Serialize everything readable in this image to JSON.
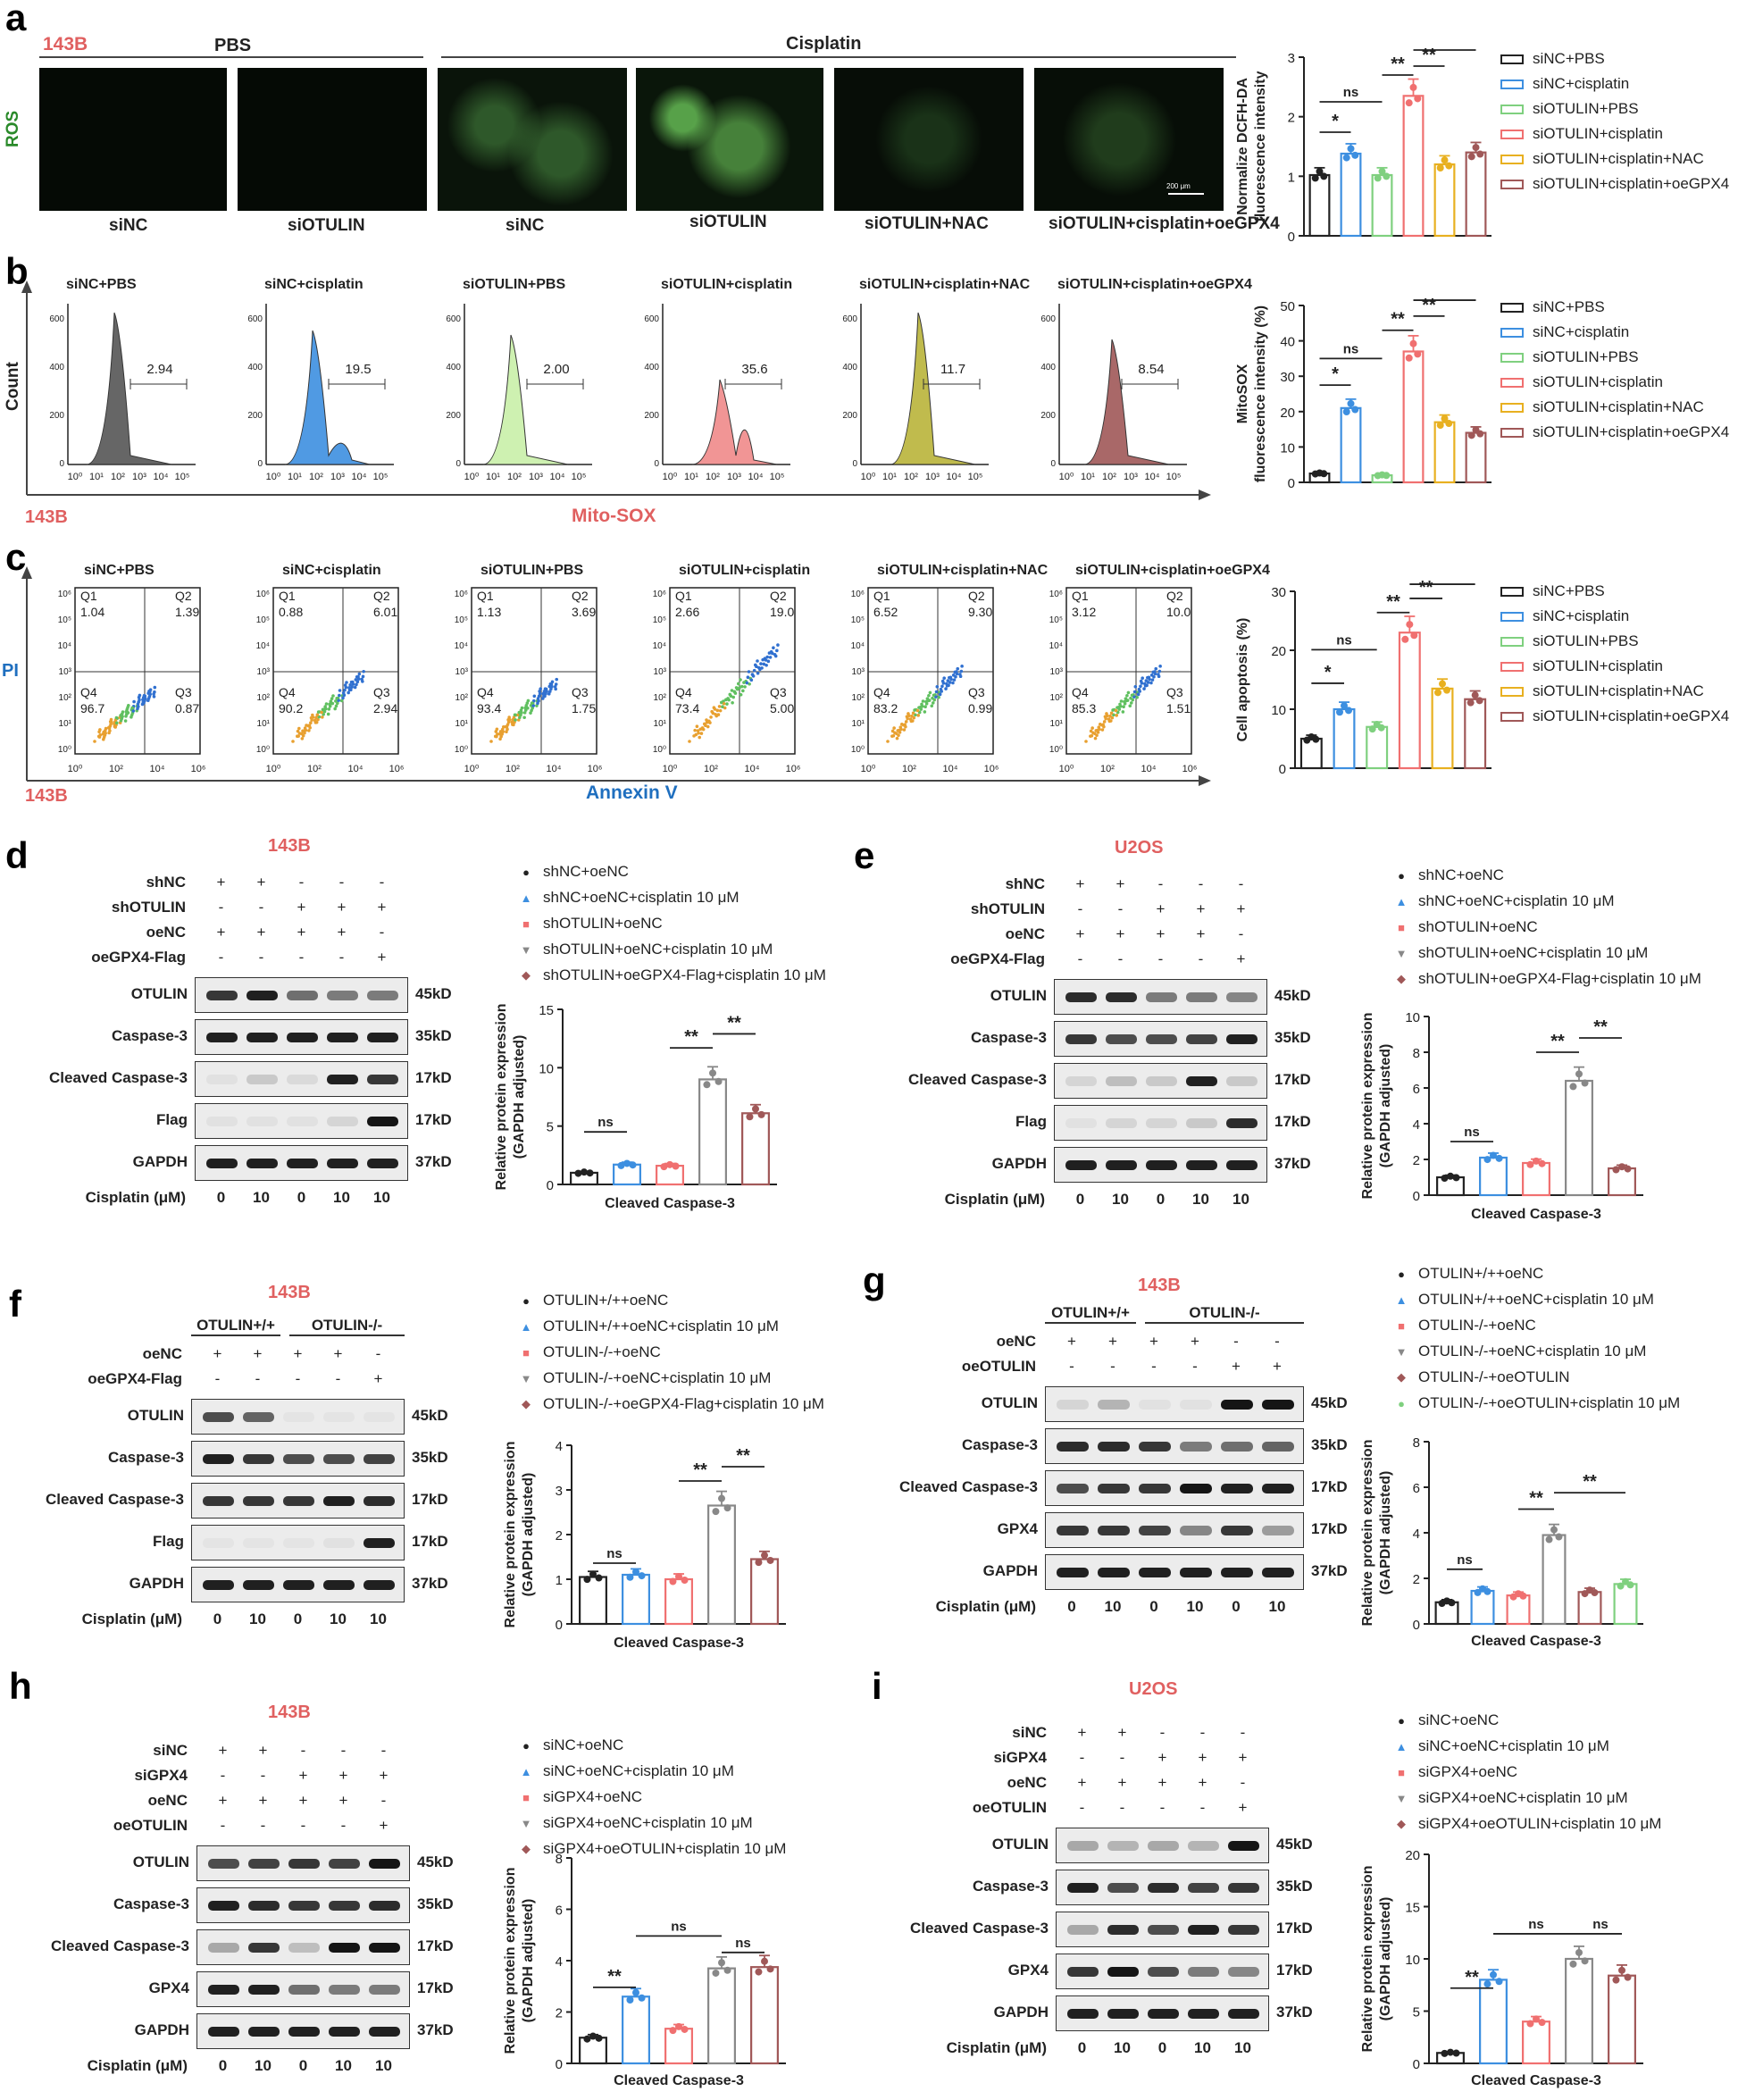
{
  "panels": {
    "a": {
      "label": "a",
      "cell": "143B",
      "pbs": "PBS",
      "cisplatin": "Cisplatin",
      "ros": "ROS",
      "scale": "200 μm",
      "images": [
        "siNC",
        "siOTULIN",
        "siNC",
        "siOTULIN",
        "siOTULIN+NAC",
        "siOTULIN+cisplatin+oeGPX4"
      ]
    },
    "b": {
      "label": "b",
      "ylabel": "Count",
      "xlabel": "Mito-SOX",
      "cell": "143B",
      "plots": [
        {
          "title": "siNC+PBS",
          "value": "2.94",
          "color": "#555555"
        },
        {
          "title": "siNC+cisplatin",
          "value": "19.5",
          "color": "#3d8fe0"
        },
        {
          "title": "siOTULIN+PBS",
          "value": "2.00",
          "color": "#c9f0a8"
        },
        {
          "title": "siOTULIN+cisplatin",
          "value": "35.6",
          "color": "#f08a8a"
        },
        {
          "title": "siOTULIN+cisplatin+NAC",
          "value": "11.7",
          "color": "#b9b43a"
        },
        {
          "title": "siOTULIN+cisplatin+oeGPX4",
          "value": "8.54",
          "color": "#a05858"
        }
      ]
    },
    "c": {
      "label": "c",
      "ylabel": "PI",
      "xlabel": "Annexin V",
      "cell": "143B",
      "plots": [
        {
          "title": "siNC+PBS",
          "q1": "1.04",
          "q2": "1.39",
          "q3": "0.87",
          "q4": "96.7"
        },
        {
          "title": "siNC+cisplatin",
          "q1": "0.88",
          "q2": "6.01",
          "q3": "2.94",
          "q4": "90.2"
        },
        {
          "title": "siOTULIN+PBS",
          "q1": "1.13",
          "q2": "3.69",
          "q3": "1.75",
          "q4": "93.4"
        },
        {
          "title": "siOTULIN+cisplatin",
          "q1": "2.66",
          "q2": "19.0",
          "q3": "5.00",
          "q4": "73.4"
        },
        {
          "title": "siOTULIN+cisplatin+NAC",
          "q1": "6.52",
          "q2": "9.30",
          "q3": "0.99",
          "q4": "83.2"
        },
        {
          "title": "siOTULIN+cisplatin+oeGPX4",
          "q1": "3.12",
          "q2": "10.0",
          "q3": "1.51",
          "q4": "85.3"
        }
      ]
    },
    "d": {
      "label": "d",
      "cell": "143B"
    },
    "e": {
      "label": "e",
      "cell": "U2OS"
    },
    "f": {
      "label": "f",
      "cell": "143B"
    },
    "g": {
      "label": "g",
      "cell": "143B"
    },
    "h": {
      "label": "h",
      "cell": "143B"
    },
    "i": {
      "label": "i",
      "cell": "U2OS"
    }
  },
  "blots": {
    "d": {
      "rows": [
        [
          "shNC",
          "+",
          "+",
          "-",
          "-",
          "-"
        ],
        [
          "shOTULIN",
          "-",
          "-",
          "+",
          "+",
          "+"
        ],
        [
          "oeNC",
          "+",
          "+",
          "+",
          "+",
          "-"
        ],
        [
          "oeGPX4-Flag",
          "-",
          "-",
          "-",
          "-",
          "+"
        ]
      ],
      "bands": [
        [
          "OTULIN",
          "45kD"
        ],
        [
          "Caspase-3",
          "35kD"
        ],
        [
          "Cleaved Caspase-3",
          "17kD"
        ],
        [
          "Flag",
          "17kD"
        ],
        [
          "GAPDH",
          "37kD"
        ]
      ],
      "cis": [
        "Cisplatin (μM)",
        "0",
        "10",
        "0",
        "10",
        "10"
      ]
    },
    "e": {
      "rows": [
        [
          "shNC",
          "+",
          "+",
          "-",
          "-",
          "-"
        ],
        [
          "shOTULIN",
          "-",
          "-",
          "+",
          "+",
          "+"
        ],
        [
          "oeNC",
          "+",
          "+",
          "+",
          "+",
          "-"
        ],
        [
          "oeGPX4-Flag",
          "-",
          "-",
          "-",
          "-",
          "+"
        ]
      ],
      "bands": [
        [
          "OTULIN",
          "45kD"
        ],
        [
          "Caspase-3",
          "35kD"
        ],
        [
          "Cleaved Caspase-3",
          "17kD"
        ],
        [
          "Flag",
          "17kD"
        ],
        [
          "GAPDH",
          "37kD"
        ]
      ],
      "cis": [
        "Cisplatin (μM)",
        "0",
        "10",
        "0",
        "10",
        "10"
      ]
    },
    "f": {
      "groups": [
        "OTULIN+/+",
        "OTULIN-/-"
      ],
      "rows": [
        [
          "oeNC",
          "+",
          "+",
          "+",
          "+",
          "-"
        ],
        [
          "oeGPX4-Flag",
          "-",
          "-",
          "-",
          "-",
          "+"
        ]
      ],
      "bands": [
        [
          "OTULIN",
          "45kD"
        ],
        [
          "Caspase-3",
          "35kD"
        ],
        [
          "Cleaved Caspase-3",
          "17kD"
        ],
        [
          "Flag",
          "17kD"
        ],
        [
          "GAPDH",
          "37kD"
        ]
      ],
      "cis": [
        "Cisplatin (μM)",
        "0",
        "10",
        "0",
        "10",
        "10"
      ]
    },
    "g": {
      "groups": [
        "OTULIN+/+",
        "OTULIN-/-"
      ],
      "rows": [
        [
          "oeNC",
          "+",
          "+",
          "+",
          "+",
          "-",
          "-"
        ],
        [
          "oeOTULIN",
          "-",
          "-",
          "-",
          "-",
          "+",
          "+"
        ]
      ],
      "bands": [
        [
          "OTULIN",
          "45kD"
        ],
        [
          "Caspase-3",
          "35kD"
        ],
        [
          "Cleaved Caspase-3",
          "17kD"
        ],
        [
          "GPX4",
          "17kD"
        ],
        [
          "GAPDH",
          "37kD"
        ]
      ],
      "cis": [
        "Cisplatin (μM)",
        "0",
        "10",
        "0",
        "10",
        "0",
        "10"
      ]
    },
    "h": {
      "rows": [
        [
          "siNC",
          "+",
          "+",
          "-",
          "-",
          "-"
        ],
        [
          "siGPX4",
          "-",
          "-",
          "+",
          "+",
          "+"
        ],
        [
          "oeNC",
          "+",
          "+",
          "+",
          "+",
          "-"
        ],
        [
          "oeOTULIN",
          "-",
          "-",
          "-",
          "-",
          "+"
        ]
      ],
      "bands": [
        [
          "OTULIN",
          "45kD"
        ],
        [
          "Caspase-3",
          "35kD"
        ],
        [
          "Cleaved Caspase-3",
          "17kD"
        ],
        [
          "GPX4",
          "17kD"
        ],
        [
          "GAPDH",
          "37kD"
        ]
      ],
      "cis": [
        "Cisplatin (μM)",
        "0",
        "10",
        "0",
        "10",
        "10"
      ]
    },
    "i": {
      "rows": [
        [
          "siNC",
          "+",
          "+",
          "-",
          "-",
          "-"
        ],
        [
          "siGPX4",
          "-",
          "-",
          "+",
          "+",
          "+"
        ],
        [
          "oeNC",
          "+",
          "+",
          "+",
          "+",
          "-"
        ],
        [
          "oeOTULIN",
          "-",
          "-",
          "-",
          "-",
          "+"
        ]
      ],
      "bands": [
        [
          "OTULIN",
          "45kD"
        ],
        [
          "Caspase-3",
          "35kD"
        ],
        [
          "Cleaved Caspase-3",
          "17kD"
        ],
        [
          "GPX4",
          "17kD"
        ],
        [
          "GAPDH",
          "37kD"
        ]
      ],
      "cis": [
        "Cisplatin (μM)",
        "0",
        "10",
        "0",
        "10",
        "10"
      ]
    }
  },
  "legends": {
    "abc": [
      "siNC+PBS",
      "siNC+cisplatin",
      "siOTULIN+PBS",
      "siOTULIN+cisplatin",
      "siOTULIN+cisplatin+NAC",
      "siOTULIN+cisplatin+oeGPX4"
    ],
    "de": [
      "shNC+oeNC",
      "shNC+oeNC+cisplatin 10 μM",
      "shOTULIN+oeNC",
      "shOTULIN+oeNC+cisplatin 10 μM",
      "shOTULIN+oeGPX4-Flag+cisplatin 10 μM"
    ],
    "f": [
      "OTULIN+/++oeNC",
      "OTULIN+/++oeNC+cisplatin 10 μM",
      "OTULIN-/-+oeNC",
      "OTULIN-/-+oeNC+cisplatin 10 μM",
      "OTULIN-/-+oeGPX4-Flag+cisplatin 10 μM"
    ],
    "g": [
      "OTULIN+/++oeNC",
      "OTULIN+/++oeNC+cisplatin 10 μM",
      "OTULIN-/-+oeNC",
      "OTULIN-/-+oeNC+cisplatin 10 μM",
      "OTULIN-/-+oeOTULIN",
      "OTULIN-/-+oeOTULIN+cisplatin 10 μM"
    ],
    "hi": [
      "siNC+oeNC",
      "siNC+oeNC+cisplatin 10 μM",
      "siGPX4+oeNC",
      "siGPX4+oeNC+cisplatin 10 μM",
      "siGPX4+oeOTULIN+cisplatin 10 μM"
    ]
  },
  "colors": {
    "c1": "#222222",
    "c2": "#3d8fe0",
    "c3": "#7fd07f",
    "c4": "#f07070",
    "c5": "#e8b020",
    "c6": "#a05858"
  },
  "chart_data": [
    {
      "id": "a",
      "type": "bar",
      "ylabel": "Normalize DCFH-DA fluorescence intensity",
      "ylim": [
        0,
        3
      ],
      "yticks": [
        "0",
        "1",
        "2",
        "3"
      ],
      "values": [
        1.02,
        1.38,
        1.02,
        2.35,
        1.2,
        1.4
      ],
      "sig": [
        "*",
        "ns",
        "**",
        "**",
        "**"
      ]
    },
    {
      "id": "b",
      "type": "bar",
      "ylabel": "MitoSOX fluorescence intensity (%)",
      "ylim": [
        0,
        50
      ],
      "yticks": [
        "0",
        "10",
        "20",
        "30",
        "40",
        "50"
      ],
      "values": [
        2.5,
        21,
        2,
        37,
        17,
        14
      ],
      "sig": [
        "*",
        "ns",
        "**",
        "**",
        "**"
      ]
    },
    {
      "id": "c",
      "type": "bar",
      "ylabel": "Cell apoptosis (%)",
      "ylim": [
        0,
        30
      ],
      "yticks": [
        "0",
        "10",
        "20",
        "30"
      ],
      "values": [
        5,
        10,
        7,
        23,
        13.5,
        11.7
      ],
      "sig": [
        "*",
        "ns",
        "**",
        "**",
        "**"
      ]
    },
    {
      "id": "d",
      "type": "bar",
      "ylabel": "Relative protein expression (GAPDH adjusted)",
      "xlabel": "Cleaved Caspase-3",
      "ylim": [
        0,
        15
      ],
      "yticks": [
        "0",
        "5",
        "10",
        "15"
      ],
      "values": [
        1.0,
        1.7,
        1.6,
        9.0,
        6.1
      ],
      "sig": [
        "ns",
        "**",
        "**"
      ]
    },
    {
      "id": "e",
      "type": "bar",
      "ylabel": "Relative protein expression (GAPDH adjusted)",
      "xlabel": "Cleaved Caspase-3",
      "ylim": [
        0,
        10
      ],
      "yticks": [
        "0",
        "2",
        "4",
        "6",
        "8",
        "10"
      ],
      "values": [
        1.0,
        2.1,
        1.8,
        6.4,
        1.5
      ],
      "sig": [
        "ns",
        "**",
        "**"
      ]
    },
    {
      "id": "f",
      "type": "bar",
      "ylabel": "Relative protein expression (GAPDH adjusted)",
      "xlabel": "Cleaved Caspase-3",
      "ylim": [
        0,
        4
      ],
      "yticks": [
        "0",
        "1",
        "2",
        "3",
        "4"
      ],
      "values": [
        1.05,
        1.1,
        1.0,
        2.65,
        1.45
      ],
      "sig": [
        "ns",
        "**",
        "**"
      ]
    },
    {
      "id": "g",
      "type": "bar",
      "ylabel": "Relative protein expression (GAPDH adjusted)",
      "xlabel": "Cleaved Caspase-3",
      "ylim": [
        0,
        8
      ],
      "yticks": [
        "0",
        "2",
        "4",
        "6",
        "8"
      ],
      "values": [
        0.95,
        1.45,
        1.25,
        3.9,
        1.4,
        1.75
      ],
      "sig": [
        "ns",
        "**",
        "**"
      ]
    },
    {
      "id": "h",
      "type": "bar",
      "ylabel": "Relative protein expression (GAPDH adjusted)",
      "xlabel": "Cleaved Caspase-3",
      "ylim": [
        0,
        8
      ],
      "yticks": [
        "0",
        "2",
        "4",
        "6",
        "8"
      ],
      "values": [
        1.0,
        2.6,
        1.35,
        3.7,
        3.75
      ],
      "sig": [
        "**",
        "ns",
        "ns"
      ]
    },
    {
      "id": "i",
      "type": "bar",
      "ylabel": "Relative protein expression (GAPDH adjusted)",
      "xlabel": "Cleaved Caspase-3",
      "ylim": [
        0,
        20
      ],
      "yticks": [
        "0",
        "5",
        "10",
        "15",
        "20"
      ],
      "values": [
        1.0,
        8.0,
        4.0,
        10.0,
        8.4
      ],
      "sig": [
        "**",
        "ns",
        "ns"
      ]
    }
  ]
}
